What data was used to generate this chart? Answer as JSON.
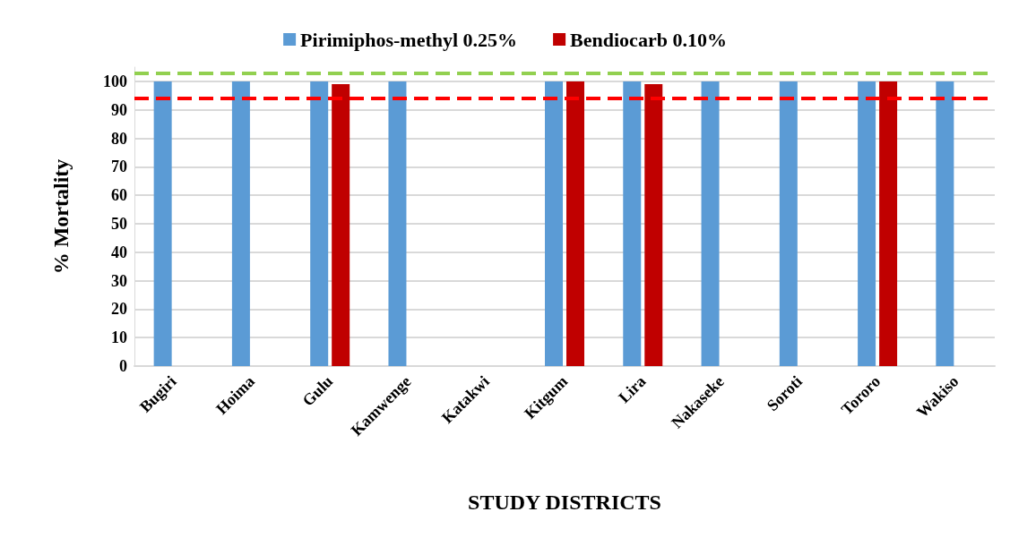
{
  "chart_data": {
    "type": "bar",
    "xlabel": "STUDY DISTRICTS",
    "ylabel": "% Mortality",
    "categories": [
      "Bugiri",
      "Hoima",
      "Gulu",
      "Kamwenge",
      "Katakwi",
      "Kitgum",
      "Lira",
      "Nakaseke",
      "Soroti",
      "Tororo",
      "Wakiso"
    ],
    "series": [
      {
        "name": "Pirimiphos-methyl 0.25%",
        "color": "#5b9bd5",
        "values": [
          100,
          100,
          100,
          100,
          null,
          100,
          100,
          100,
          100,
          100,
          100
        ]
      },
      {
        "name": "Bendiocarb 0.10%",
        "color": "#c00000",
        "values": [
          null,
          null,
          99,
          null,
          null,
          100,
          99,
          null,
          null,
          100,
          null
        ]
      }
    ],
    "ylim": [
      0,
      105
    ],
    "yticks": [
      0,
      10,
      20,
      30,
      40,
      50,
      60,
      70,
      80,
      90,
      100
    ],
    "ref_lines": [
      {
        "axis": "y",
        "value": 103,
        "color": "#92d050",
        "line_style": "dashed"
      },
      {
        "axis": "y",
        "value": 94,
        "color": "#ff0000",
        "line_style": "dashed"
      }
    ],
    "grid": "y",
    "legend": "top"
  }
}
